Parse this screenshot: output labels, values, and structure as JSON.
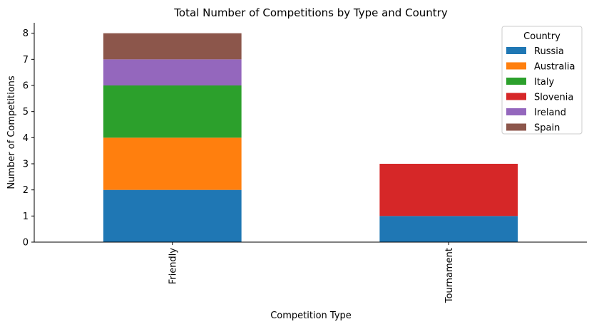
{
  "chart_data": {
    "type": "bar",
    "stacked": true,
    "title": "Total Number of Competitions by Type and Country",
    "xlabel": "Competition Type",
    "ylabel": "Number of Competitions",
    "categories": [
      "Friendly",
      "Tournament"
    ],
    "ylim": [
      0,
      8.4
    ],
    "yticks": [
      0,
      1,
      2,
      3,
      4,
      5,
      6,
      7,
      8
    ],
    "grid": false,
    "legend": {
      "title": "Country",
      "placement": "top-right"
    },
    "series": [
      {
        "name": "Russia",
        "color": "#1f77b4",
        "values": [
          2,
          1
        ]
      },
      {
        "name": "Australia",
        "color": "#ff7f0e",
        "values": [
          2,
          0
        ]
      },
      {
        "name": "Italy",
        "color": "#2ca02c",
        "values": [
          2,
          0
        ]
      },
      {
        "name": "Slovenia",
        "color": "#d62728",
        "values": [
          0,
          2
        ]
      },
      {
        "name": "Ireland",
        "color": "#9467bd",
        "values": [
          1,
          0
        ]
      },
      {
        "name": "Spain",
        "color": "#8c564b",
        "values": [
          1,
          0
        ]
      }
    ]
  }
}
